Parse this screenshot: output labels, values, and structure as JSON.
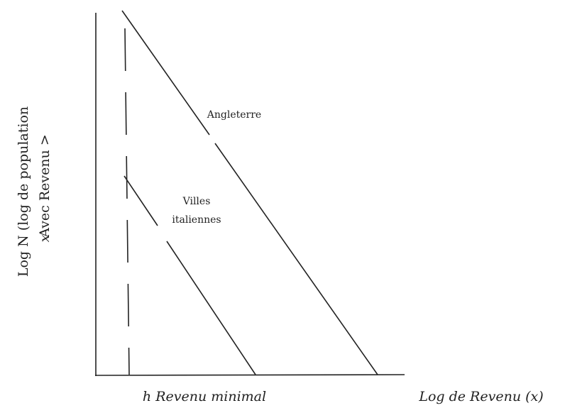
{
  "y_axis": {
    "label": [
      "Log N (log de population",
      "Avec Revenu >",
      "x"
    ]
  },
  "x_axis": {
    "minimum_label": "h Revenu minimal",
    "label": "Log de Revenu (x)"
  },
  "curves": [
    {
      "label": [
        "Angleterre"
      ]
    },
    {
      "label": [
        "Villes",
        "italiennes"
      ]
    }
  ]
}
